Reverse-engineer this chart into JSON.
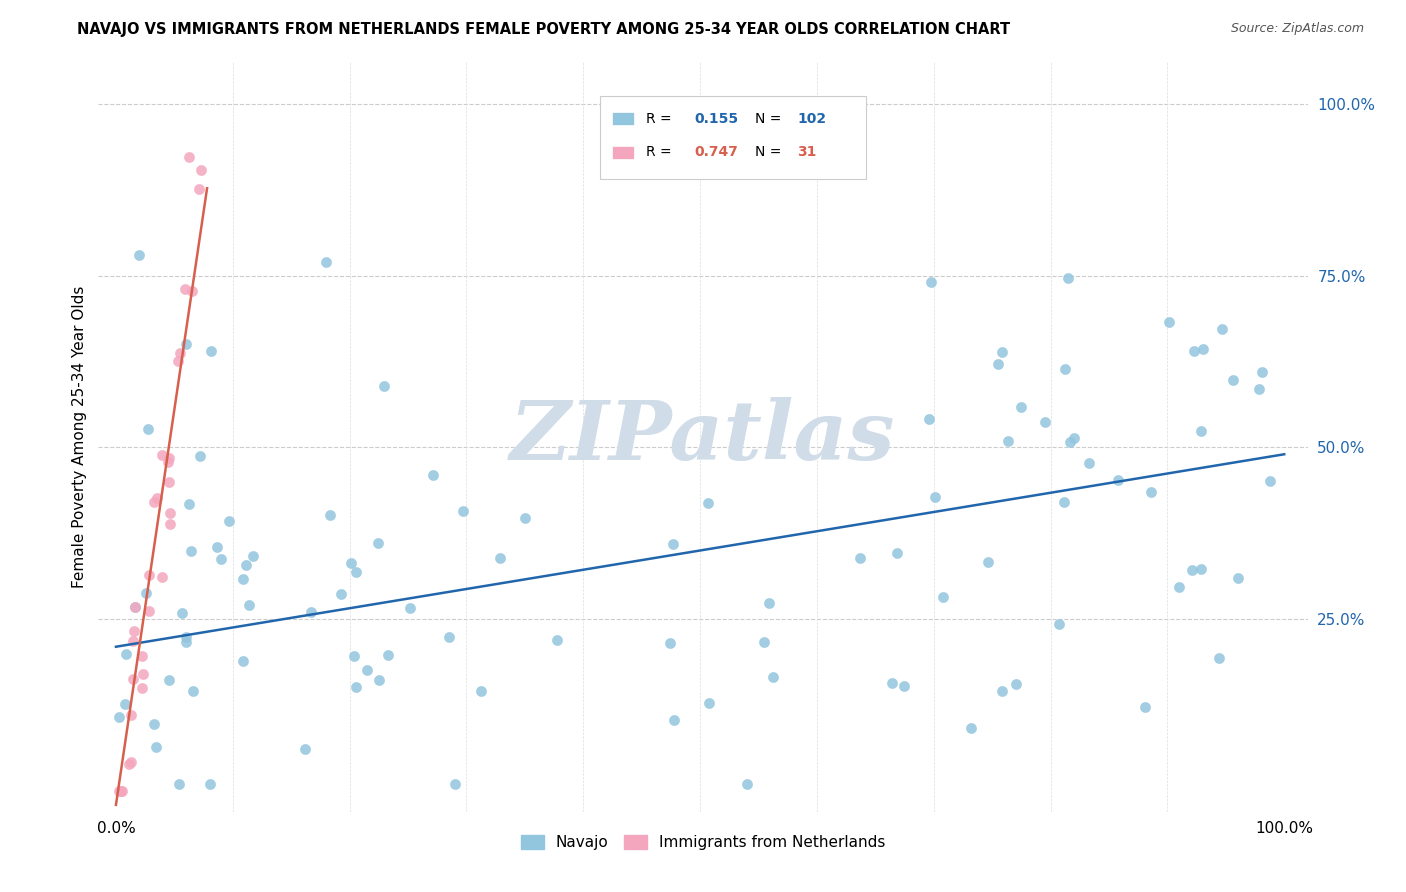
{
  "title": "NAVAJO VS IMMIGRANTS FROM NETHERLANDS FEMALE POVERTY AMONG 25-34 YEAR OLDS CORRELATION CHART",
  "source": "Source: ZipAtlas.com",
  "ylabel": "Female Poverty Among 25-34 Year Olds",
  "navajo_R": 0.155,
  "navajo_N": 102,
  "netherlands_R": 0.747,
  "netherlands_N": 31,
  "navajo_color": "#92c5de",
  "netherlands_color": "#f4a6be",
  "navajo_line_color": "#2166ac",
  "netherlands_line_color": "#d6604d",
  "watermark_color": "#d0dce8",
  "navajo_slope": 0.28,
  "navajo_intercept": 0.21,
  "neth_slope": 11.5,
  "neth_intercept": -0.02,
  "seed_nav": 7,
  "seed_neth": 42
}
